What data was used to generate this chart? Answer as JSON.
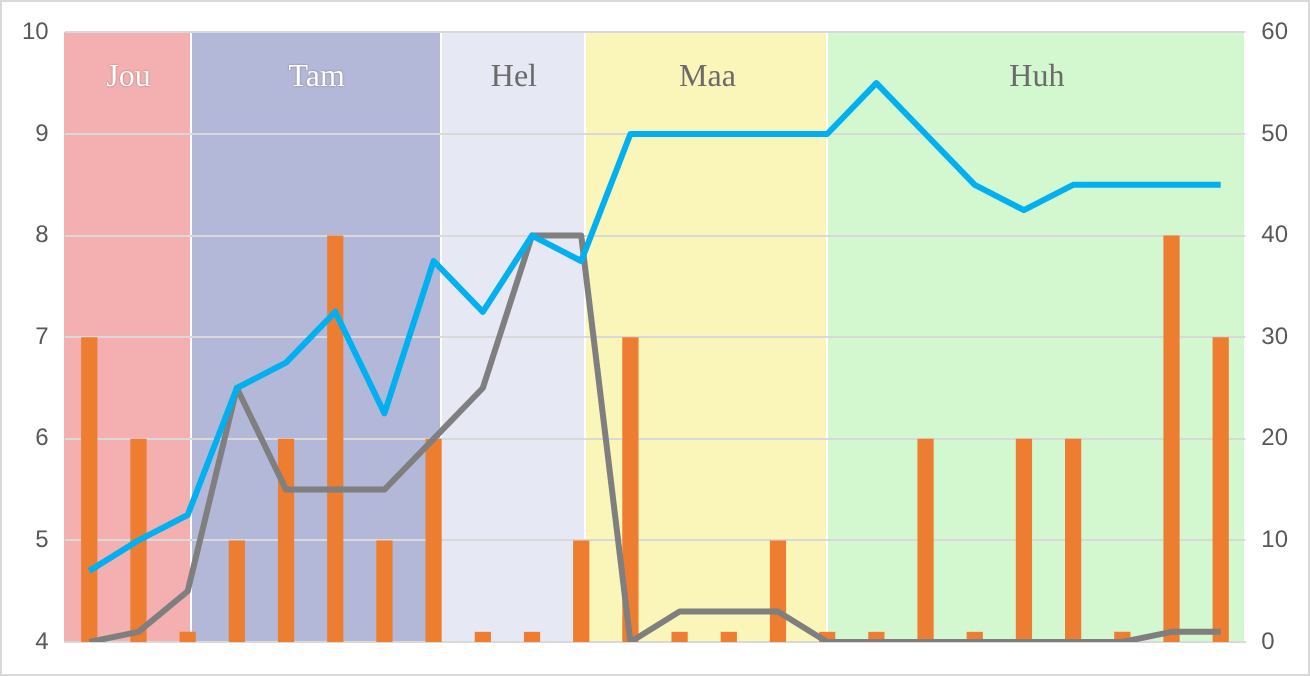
{
  "chart_data": {
    "type": "bar",
    "categories": [
      null,
      null,
      null,
      null,
      null,
      null,
      null,
      null,
      null,
      null,
      null,
      null,
      null,
      null,
      null,
      null,
      null,
      null,
      null,
      null,
      null,
      null,
      null,
      null
    ],
    "series": [
      {
        "color": "#ed7d31",
        "axis": "y2",
        "values": [
          30,
          20,
          1,
          10,
          20,
          40,
          10,
          20,
          1,
          1,
          10,
          30,
          1,
          1,
          10,
          1,
          1,
          20,
          1,
          20,
          20,
          1,
          40,
          30
        ]
      },
      {
        "type": "line",
        "color": "#00b0f0",
        "values": [
          4.7,
          5.0,
          5.25,
          6.5,
          6.75,
          7.25,
          6.25,
          7.75,
          7.25,
          8,
          7.75,
          9,
          9,
          9,
          9,
          9,
          9.5,
          9,
          8.5,
          8.25,
          8.5,
          8.5,
          8.5,
          8.5
        ]
      },
      {
        "type": "line",
        "color": "#7f7f7f",
        "axis": "y2",
        "values": [
          0,
          1,
          5,
          25,
          15,
          15,
          15,
          20,
          25,
          40,
          40,
          0,
          3,
          3,
          3,
          0,
          0,
          0,
          0,
          0,
          0,
          0,
          1,
          1
        ]
      }
    ],
    "ylim": [
      4,
      10
    ],
    "yticks": [
      4,
      5,
      6,
      7,
      8,
      9,
      10
    ],
    "y2lim": [
      0,
      60
    ],
    "y2ticks": [
      0,
      10,
      20,
      30,
      40,
      50,
      60
    ],
    "annotations": [
      "Jou",
      "Tam",
      "Hel",
      "Maa",
      "Huh"
    ],
    "grid": "y",
    "legend": false,
    "tick_labels": "y",
    "marker": "none",
    "line_style": "solid"
  }
}
